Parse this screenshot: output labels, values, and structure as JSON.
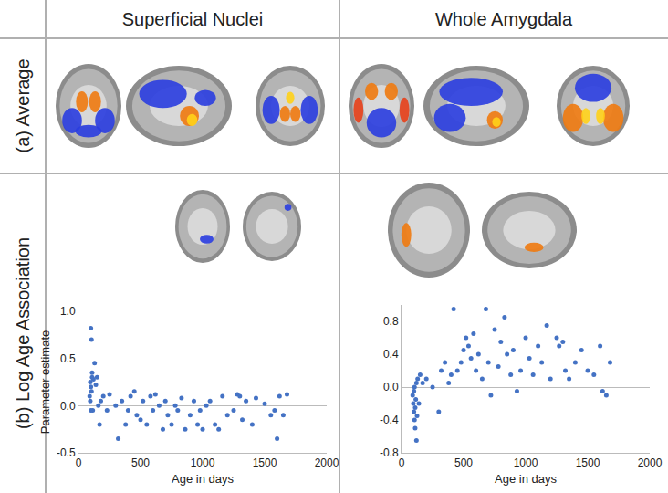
{
  "figure": {
    "columns": [
      "Superficial Nuclei",
      "Whole Amygdala"
    ],
    "rows": [
      "(a) Average",
      "(b) Log Age Association"
    ]
  },
  "chart_data": [
    {
      "type": "scatter",
      "marker": "circle",
      "color": "#4472c4",
      "grid": false,
      "x_label": "Age in days",
      "y_label": "Parameter estimate",
      "xlim": [
        0,
        2000
      ],
      "xticks": [
        0,
        500,
        1000,
        1500,
        2000
      ],
      "ylim": [
        -0.5,
        1.0
      ],
      "yticks": [
        -0.5,
        {
          "value": 0,
          "label": "0.0"
        },
        0.5,
        {
          "value": 1,
          "label": "1.0"
        }
      ],
      "x": [
        100,
        105,
        110,
        95,
        100,
        105,
        110,
        120,
        90,
        95,
        115,
        100,
        130,
        140,
        150,
        160,
        170,
        180,
        200,
        230,
        250,
        300,
        320,
        350,
        380,
        400,
        420,
        450,
        470,
        500,
        520,
        550,
        580,
        600,
        620,
        650,
        680,
        700,
        720,
        750,
        780,
        800,
        830,
        860,
        900,
        930,
        960,
        980,
        1000,
        1030,
        1060,
        1100,
        1130,
        1160,
        1200,
        1250,
        1280,
        1300,
        1320,
        1350,
        1400,
        1430,
        1500,
        1550,
        1580,
        1600,
        1620,
        1650,
        1680
      ],
      "values": [
        0.82,
        0.7,
        0.3,
        0.25,
        0.2,
        0.15,
        0.35,
        0.28,
        0.1,
        0.05,
        -0.05,
        -0.05,
        0.45,
        0.22,
        0.3,
        0.0,
        -0.2,
        0.05,
        0.1,
        -0.05,
        0.12,
        0.0,
        -0.35,
        0.05,
        -0.2,
        -0.05,
        0.1,
        0.15,
        -0.1,
        -0.15,
        0.05,
        -0.2,
        0.1,
        -0.05,
        0.12,
        0.0,
        -0.25,
        0.05,
        -0.1,
        -0.2,
        0.0,
        -0.05,
        0.08,
        -0.25,
        -0.1,
        0.05,
        -0.2,
        -0.05,
        -0.25,
        0.0,
        0.05,
        -0.2,
        -0.25,
        0.1,
        -0.1,
        -0.05,
        0.12,
        0.1,
        -0.15,
        0.05,
        -0.2,
        0.08,
        0.02,
        -0.1,
        -0.05,
        -0.35,
        0.1,
        -0.1,
        0.12
      ]
    },
    {
      "type": "scatter",
      "marker": "circle",
      "color": "#4472c4",
      "grid": false,
      "x_label": "Age in days",
      "xlim": [
        0,
        2000
      ],
      "xticks": [
        0,
        500,
        1000,
        1500,
        2000
      ],
      "ylim": [
        -0.8,
        1.0
      ],
      "yticks": [
        -0.8,
        -0.4,
        {
          "value": 0,
          "label": "0.0"
        },
        0.4,
        0.8
      ],
      "x": [
        90,
        95,
        100,
        100,
        105,
        105,
        110,
        110,
        115,
        120,
        120,
        125,
        130,
        140,
        150,
        170,
        200,
        250,
        300,
        320,
        350,
        380,
        400,
        420,
        450,
        480,
        500,
        520,
        540,
        560,
        580,
        600,
        620,
        650,
        680,
        700,
        720,
        750,
        780,
        800,
        830,
        850,
        880,
        900,
        930,
        960,
        1000,
        1030,
        1060,
        1100,
        1130,
        1170,
        1200,
        1250,
        1270,
        1300,
        1320,
        1350,
        1400,
        1450,
        1500,
        1550,
        1600,
        1620,
        1650,
        1680
      ],
      "values": [
        -0.1,
        -0.2,
        -0.3,
        -0.05,
        -0.4,
        0.0,
        -0.25,
        -0.5,
        -0.15,
        -0.65,
        0.05,
        -0.35,
        0.1,
        -0.2,
        0.15,
        0.05,
        0.1,
        0.0,
        -0.3,
        0.2,
        0.3,
        0.05,
        0.15,
        0.95,
        0.2,
        0.3,
        0.45,
        0.6,
        0.5,
        0.35,
        0.65,
        0.2,
        0.4,
        0.1,
        0.95,
        0.3,
        -0.1,
        0.7,
        0.25,
        0.55,
        0.85,
        0.4,
        0.15,
        0.45,
        -0.05,
        0.2,
        0.6,
        0.35,
        0.15,
        0.5,
        0.3,
        0.75,
        0.1,
        0.6,
        0.5,
        0.55,
        0.2,
        0.1,
        0.3,
        0.45,
        0.2,
        0.15,
        0.5,
        -0.05,
        -0.1,
        0.3
      ]
    }
  ]
}
